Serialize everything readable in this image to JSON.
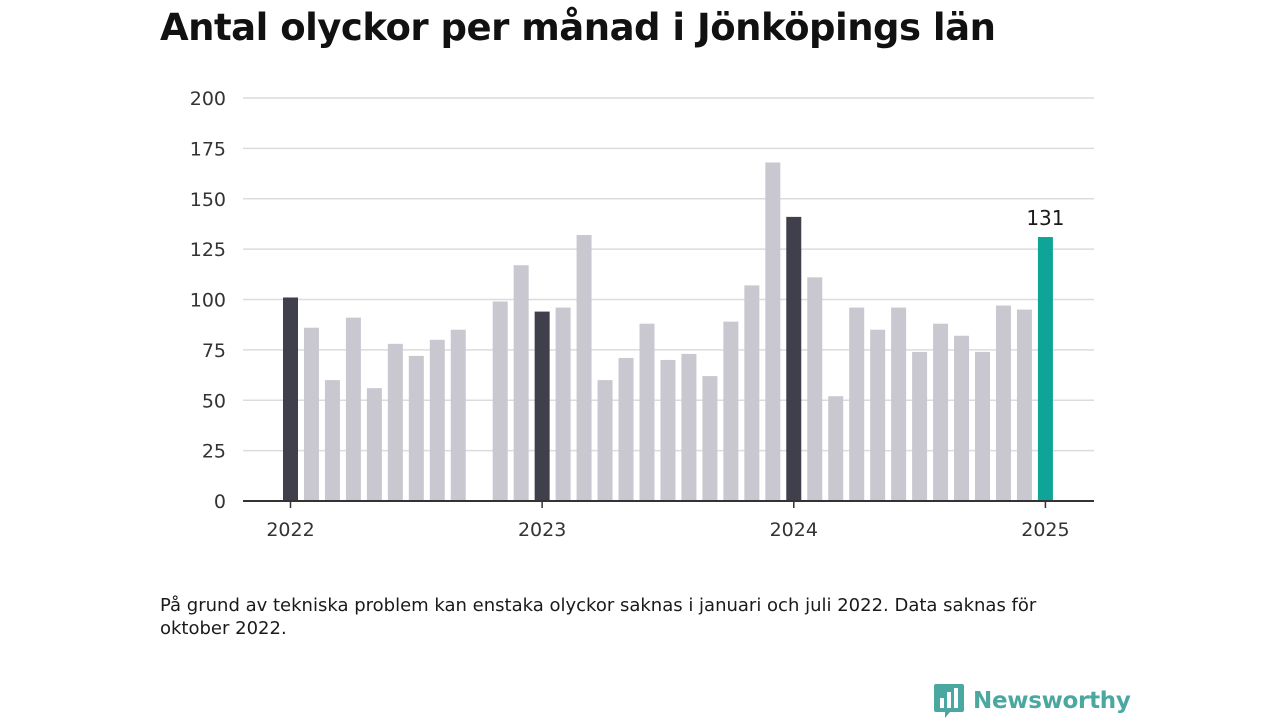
{
  "title": "Antal olyckor per månad i Jönköpings län",
  "note": "På grund av tekniska problem kan enstaka olyckor saknas i januari och juli 2022. Data saknas för oktober 2022.",
  "brand": {
    "name": "Newsworthy",
    "icon": "newsworthy-logo-icon"
  },
  "colors": {
    "bar_default": "#c9c8d0",
    "bar_january": "#403f4c",
    "bar_latest": "#0ea498",
    "grid": "#dcdcdc",
    "axis": "#333333"
  },
  "chart_data": {
    "type": "bar",
    "title": "Antal olyckor per månad i Jönköpings län",
    "xlabel": "",
    "ylabel": "",
    "ylim": [
      0,
      200
    ],
    "yticks": [
      0,
      25,
      50,
      75,
      100,
      125,
      150,
      175,
      200
    ],
    "xtick_labels": [
      {
        "label": "2022",
        "index": 0
      },
      {
        "label": "2023",
        "index": 12
      },
      {
        "label": "2024",
        "index": 24
      },
      {
        "label": "2025",
        "index": 36
      }
    ],
    "categories": [
      "2022-01",
      "2022-02",
      "2022-03",
      "2022-04",
      "2022-05",
      "2022-06",
      "2022-07",
      "2022-08",
      "2022-09",
      "2022-10",
      "2022-11",
      "2022-12",
      "2023-01",
      "2023-02",
      "2023-03",
      "2023-04",
      "2023-05",
      "2023-06",
      "2023-07",
      "2023-08",
      "2023-09",
      "2023-10",
      "2023-11",
      "2023-12",
      "2024-01",
      "2024-02",
      "2024-03",
      "2024-04",
      "2024-05",
      "2024-06",
      "2024-07",
      "2024-08",
      "2024-09",
      "2024-10",
      "2024-11",
      "2024-12",
      "2025-01"
    ],
    "values": [
      101,
      86,
      60,
      91,
      56,
      78,
      72,
      80,
      85,
      null,
      99,
      117,
      94,
      96,
      132,
      60,
      71,
      88,
      70,
      73,
      62,
      89,
      107,
      168,
      141,
      111,
      52,
      96,
      85,
      96,
      74,
      88,
      82,
      74,
      97,
      95,
      131
    ],
    "annotations": [
      {
        "index": 36,
        "text": "131"
      }
    ],
    "grid": true,
    "legend": "none"
  }
}
